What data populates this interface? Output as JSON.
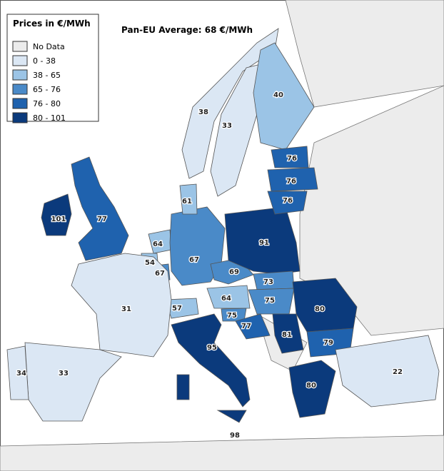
{
  "legend": {
    "title": "Prices in €/MWh",
    "items": [
      {
        "label": "No Data",
        "color": "#ececec"
      },
      {
        "label": "0 - 38",
        "color": "#dbe7f4"
      },
      {
        "label": "38 - 65",
        "color": "#9bc4e6"
      },
      {
        "label": "65 - 76",
        "color": "#4a8ac8"
      },
      {
        "label": "76 - 80",
        "color": "#1f62ae"
      },
      {
        "label": "80 - 101",
        "color": "#0b3a7c"
      }
    ]
  },
  "average": "Pan-EU Average: 68 €/MWh",
  "regions": [
    {
      "value": 101,
      "color": "#0b3a7c"
    },
    {
      "value": 77,
      "color": "#1f62ae"
    },
    {
      "value": 64,
      "color": "#9bc4e6"
    },
    {
      "value": 54,
      "color": "#9bc4e6"
    },
    {
      "value": 67,
      "color": "#4a8ac8"
    },
    {
      "value": 67,
      "color": "#4a8ac8"
    },
    {
      "value": 69,
      "color": "#4a8ac8"
    },
    {
      "value": 91,
      "color": "#0b3a7c"
    },
    {
      "value": 73,
      "color": "#4a8ac8"
    },
    {
      "value": 75,
      "color": "#4a8ac8"
    },
    {
      "value": 64,
      "color": "#9bc4e6"
    },
    {
      "value": 57,
      "color": "#9bc4e6"
    },
    {
      "value": 75,
      "color": "#4a8ac8"
    },
    {
      "value": 77,
      "color": "#1f62ae"
    },
    {
      "value": 81,
      "color": "#0b3a7c"
    },
    {
      "value": 80,
      "color": "#0b3a7c"
    },
    {
      "value": 79,
      "color": "#1f62ae"
    },
    {
      "value": 80,
      "color": "#0b3a7c"
    },
    {
      "value": 95,
      "color": "#0b3a7c"
    },
    {
      "value": 98,
      "color": "#0b3a7c"
    },
    {
      "value": 31,
      "color": "#dbe7f4"
    },
    {
      "value": 33,
      "color": "#dbe7f4"
    },
    {
      "value": 34,
      "color": "#dbe7f4"
    },
    {
      "value": 22,
      "color": "#dbe7f4"
    },
    {
      "value": 38,
      "color": "#dbe7f4"
    },
    {
      "value": 33,
      "color": "#dbe7f4"
    },
    {
      "value": 40,
      "color": "#9bc4e6"
    },
    {
      "value": 76,
      "color": "#1f62ae"
    },
    {
      "value": 76,
      "color": "#1f62ae"
    },
    {
      "value": 76,
      "color": "#1f62ae"
    },
    {
      "value": 61,
      "color": "#9bc4e6"
    }
  ]
}
